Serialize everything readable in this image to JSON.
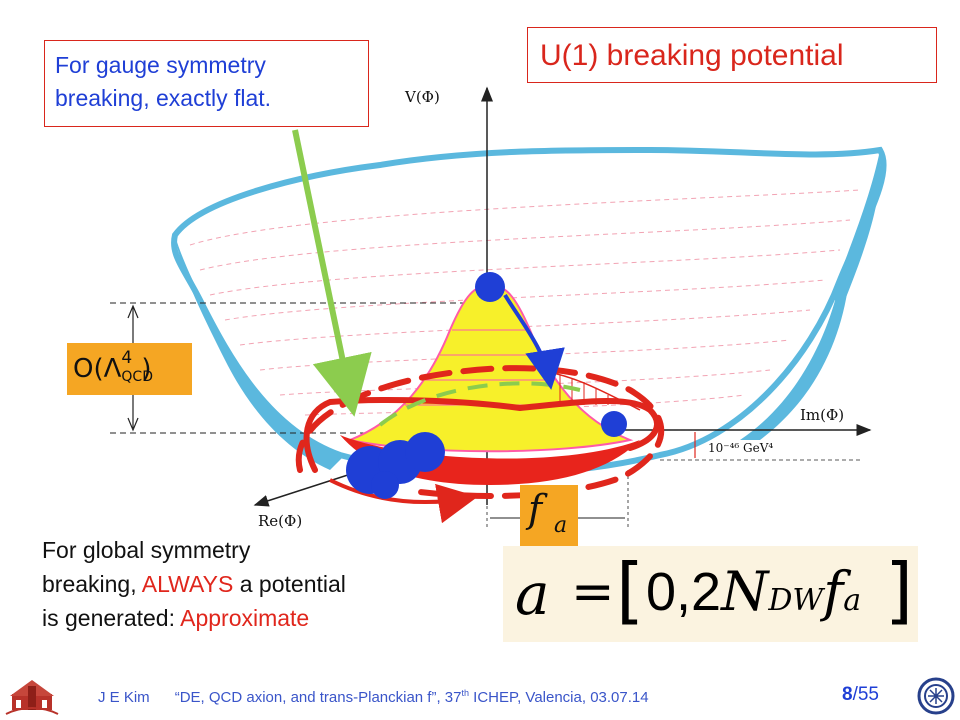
{
  "title": "U(1) breaking potential",
  "gauge_note": {
    "line1": "For gauge symmetry",
    "line2": "breaking, exactly flat."
  },
  "global_note": {
    "line1": "For global symmetry",
    "line2_pre": "breaking, ",
    "line2_red": "ALWAYS",
    "line2_post": " a potential",
    "line3_pre": "is generated: ",
    "line3_red": "Approximate"
  },
  "axes": {
    "v_label": "V(Φ)",
    "im_label": "Im(Φ)",
    "re_label": "Re(Φ)",
    "gap_label": "10⁻⁴⁶ GeV⁴"
  },
  "order_label": {
    "prefix": "O(",
    "lambda": "Λ",
    "power": "4",
    "sub": "QCD",
    "suffix": ")"
  },
  "fa_label": {
    "f": "f",
    "a": "a"
  },
  "formula": {
    "lhs": "a",
    "eq": "=",
    "open": "[",
    "body_pre": "0,2",
    "N": "N",
    "sub_dw": "DW",
    "f": "f",
    "sub_a": "a",
    "close": "]"
  },
  "footer": {
    "author": "J  E  Kim",
    "talk": "“DE, QCD axion,  and trans-Planckian f”,  37",
    "sup": "th",
    "venue": " ICHEP, Valencia,  03.07.14",
    "page_current": "8",
    "page_sep": "/55"
  },
  "colors": {
    "red": "#e0261c",
    "blue": "#1f3fd6",
    "orange": "#f5a623",
    "cyan": "#5bb8de",
    "yellow": "#f7f02a",
    "green": "#8ccc4e"
  }
}
